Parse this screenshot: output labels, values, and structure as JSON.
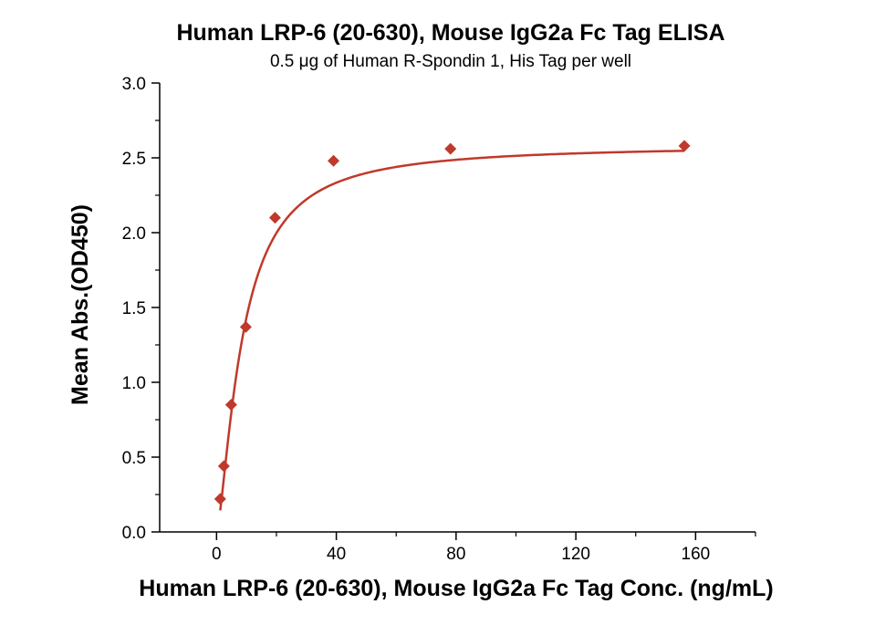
{
  "chart_data": {
    "type": "scatter",
    "title": "Human LRP-6 (20-630), Mouse IgG2a Fc Tag ELISA",
    "subtitle": "0.5 μg of Human R-Spondin 1, His Tag per well",
    "xlabel": "Human LRP-6 (20-630), Mouse IgG2a Fc Tag Conc. (ng/mL)",
    "ylabel": "Mean Abs.(OD450)",
    "xlim": [
      -19,
      180
    ],
    "ylim": [
      0,
      3.0
    ],
    "x_ticks": [
      0,
      40,
      80,
      120,
      160
    ],
    "y_ticks": [
      0.0,
      0.5,
      1.0,
      1.5,
      2.0,
      2.5,
      3.0
    ],
    "x_tick_labels": [
      "0",
      "40",
      "80",
      "120",
      "160"
    ],
    "y_tick_labels": [
      "0.0",
      "0.5",
      "1.0",
      "1.5",
      "2.0",
      "2.5",
      "3.0"
    ],
    "grid": false,
    "marker_color": "#c0392b",
    "curve_color": "#c0392b",
    "series": [
      {
        "marker": "diamond",
        "x": [
          1.22,
          2.44,
          4.88,
          9.77,
          19.53,
          39.06,
          78.13,
          156.25
        ],
        "y": [
          0.22,
          0.44,
          0.85,
          1.37,
          2.1,
          2.48,
          2.56,
          2.58
        ],
        "fit": "4-parameter logistic"
      }
    ]
  }
}
